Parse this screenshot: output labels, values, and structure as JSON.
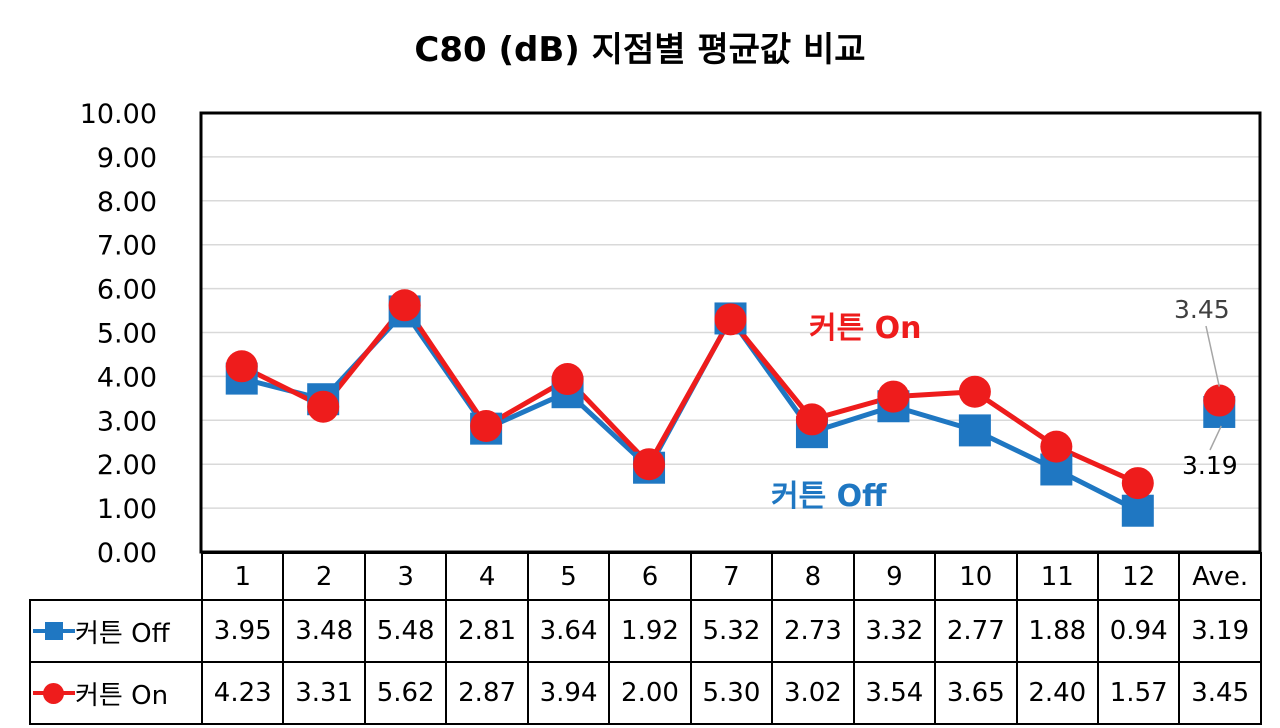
{
  "chart_data": {
    "type": "line",
    "title": "C80 (dB) 지점별 평균값 비교",
    "categories": [
      "1",
      "2",
      "3",
      "4",
      "5",
      "6",
      "7",
      "8",
      "9",
      "10",
      "11",
      "12",
      "Ave."
    ],
    "ylim": [
      0,
      10
    ],
    "yticks": [
      "0.00",
      "1.00",
      "2.00",
      "3.00",
      "4.00",
      "5.00",
      "6.00",
      "7.00",
      "8.00",
      "9.00",
      "10.00"
    ],
    "grid": true,
    "series": [
      {
        "name": "커튼 Off",
        "color": "#1f77c2",
        "marker": "square",
        "values": [
          3.95,
          3.48,
          5.48,
          2.81,
          3.64,
          1.92,
          5.32,
          2.73,
          3.32,
          2.77,
          1.88,
          0.94,
          3.19
        ],
        "display": [
          "3.95",
          "3.48",
          "5.48",
          "2.81",
          "3.64",
          "1.92",
          "5.32",
          "2.73",
          "3.32",
          "2.77",
          "1.88",
          "0.94",
          "3.19"
        ]
      },
      {
        "name": "커튼 On",
        "color": "#ee1c1c",
        "marker": "circle",
        "values": [
          4.23,
          3.31,
          5.62,
          2.87,
          3.94,
          2.0,
          5.3,
          3.02,
          3.54,
          3.65,
          2.4,
          1.57,
          3.45
        ],
        "display": [
          "4.23",
          "3.31",
          "5.62",
          "2.87",
          "3.94",
          "2.00",
          "5.30",
          "3.02",
          "3.54",
          "3.65",
          "2.40",
          "1.57",
          "3.45"
        ]
      }
    ],
    "annotations": {
      "on_label": "커튼 On",
      "off_label": "커튼 Off",
      "ave_on": "3.45",
      "ave_off": "3.19"
    }
  }
}
